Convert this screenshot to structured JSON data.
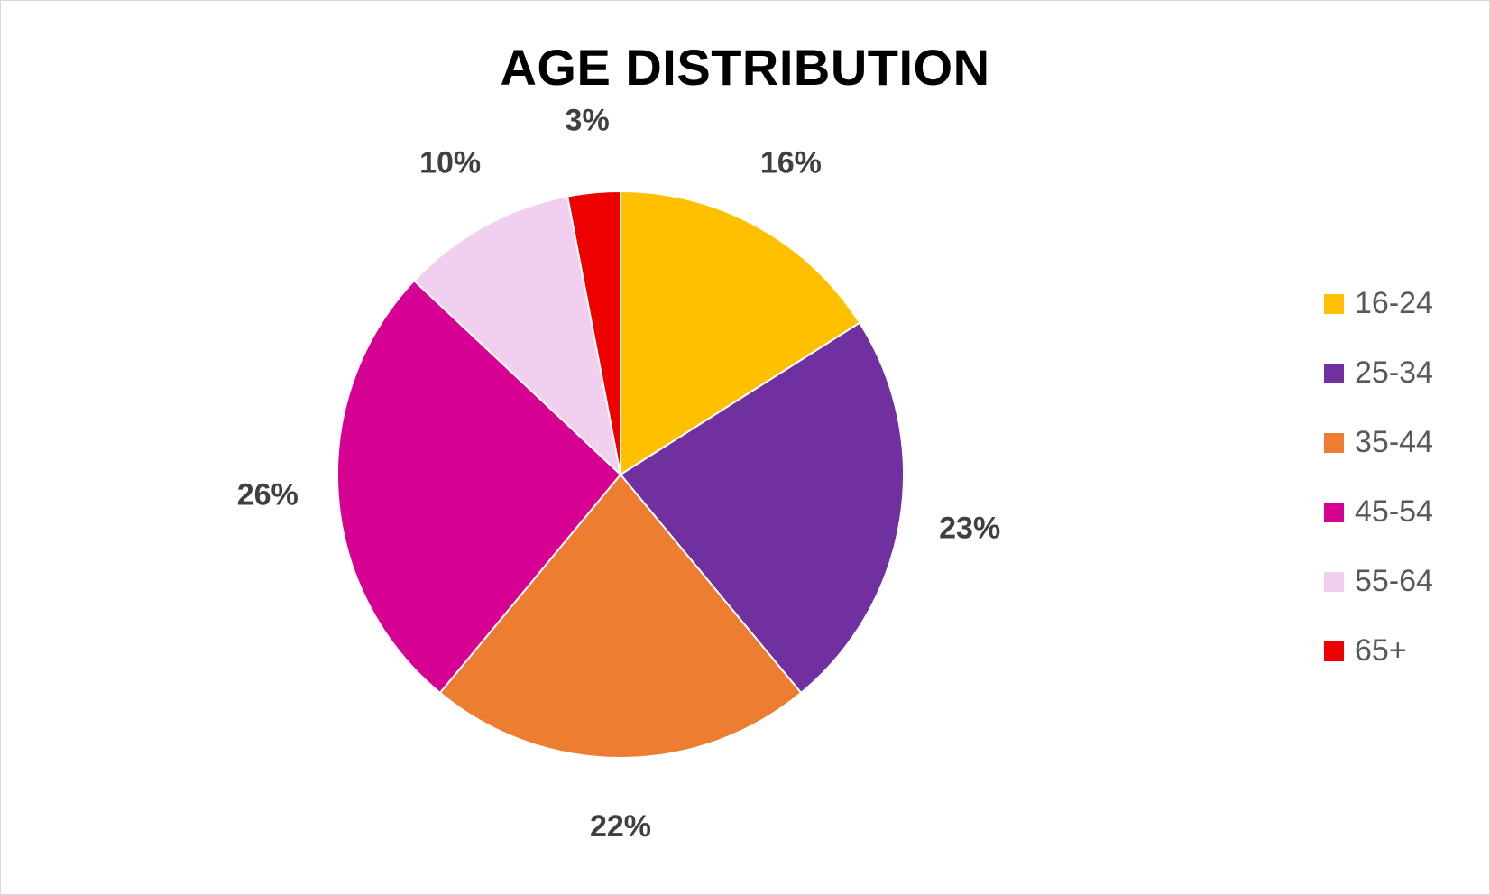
{
  "chart_data": {
    "type": "pie",
    "title": "AGE DISTRIBUTION",
    "categories": [
      "16-24",
      "25-34",
      "35-44",
      "45-54",
      "55-64",
      "65+"
    ],
    "values": [
      16,
      23,
      22,
      26,
      10,
      3
    ],
    "data_labels": [
      "16%",
      "23%",
      "22%",
      "26%",
      "10%",
      "3%"
    ],
    "colors": [
      "#FFC000",
      "#7030A0",
      "#ED7D31",
      "#D60093",
      "#F0D0EE",
      "#EE0000"
    ],
    "start_angle": "12 o'clock",
    "direction": "clockwise",
    "legend": {
      "placement": "right",
      "items": [
        "16-24",
        "25-34",
        "35-44",
        "45-54",
        "55-64",
        "65+"
      ]
    }
  }
}
